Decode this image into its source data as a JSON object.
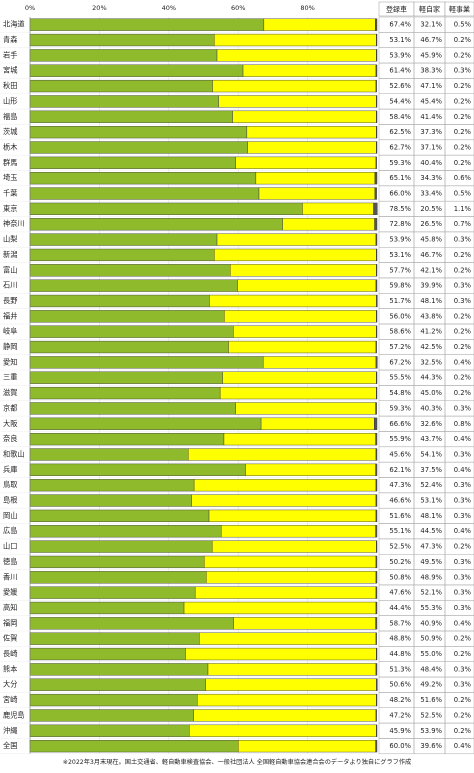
{
  "chart_data": {
    "type": "stacked-bar-100",
    "categories": [
      "北海道",
      "青森",
      "岩手",
      "宮城",
      "秋田",
      "山形",
      "福島",
      "茨城",
      "栃木",
      "群馬",
      "埼玉",
      "千葉",
      "東京",
      "神奈川",
      "山梨",
      "新潟",
      "富山",
      "石川",
      "長野",
      "福井",
      "岐阜",
      "静岡",
      "愛知",
      "三重",
      "滋賀",
      "京都",
      "大阪",
      "奈良",
      "和歌山",
      "兵庫",
      "鳥取",
      "島根",
      "岡山",
      "広島",
      "山口",
      "徳島",
      "香川",
      "愛媛",
      "高知",
      "福岡",
      "佐賀",
      "長崎",
      "熊本",
      "大分",
      "宮崎",
      "鹿児島",
      "沖縄",
      "全国"
    ],
    "series": [
      {
        "name": "登録車",
        "color": "#8fba2c",
        "values": [
          67.4,
          53.1,
          53.9,
          61.4,
          52.6,
          54.4,
          58.4,
          62.5,
          62.7,
          59.3,
          65.1,
          66.0,
          78.5,
          72.8,
          53.9,
          53.1,
          57.7,
          59.8,
          51.7,
          56.0,
          58.6,
          57.2,
          67.2,
          55.5,
          54.8,
          59.3,
          66.6,
          55.9,
          45.6,
          62.1,
          47.3,
          46.6,
          51.6,
          55.1,
          52.5,
          50.2,
          50.8,
          47.6,
          44.4,
          58.7,
          48.8,
          44.8,
          51.3,
          50.6,
          48.2,
          47.2,
          45.9,
          60.0
        ],
        "value_labels": [
          "67.4%",
          "53.1%",
          "53.9%",
          "61.4%",
          "52.6%",
          "54.4%",
          "58.4%",
          "62.5%",
          "62.7%",
          "59.3%",
          "65.1%",
          "66.0%",
          "78.5%",
          "72.8%",
          "53.9%",
          "53.1%",
          "57.7%",
          "59.8%",
          "51.7%",
          "56.0%",
          "58.6%",
          "57.2%",
          "67.2%",
          "55.5%",
          "54.8%",
          "59.3%",
          "66.6%",
          "55.9%",
          "45.6%",
          "62.1%",
          "47.3%",
          "46.6%",
          "51.6%",
          "55.1%",
          "52.5%",
          "50.2%",
          "50.8%",
          "47.6%",
          "44.4%",
          "58.7%",
          "48.8%",
          "44.8%",
          "51.3%",
          "50.6%",
          "48.2%",
          "47.2%",
          "45.9%",
          "60.0%"
        ]
      },
      {
        "name": "軽自家",
        "color": "#ffff00",
        "values": [
          32.1,
          46.7,
          45.9,
          38.3,
          47.1,
          45.4,
          41.4,
          37.3,
          37.1,
          40.4,
          34.3,
          33.4,
          20.5,
          26.5,
          45.8,
          46.7,
          42.1,
          39.9,
          48.1,
          43.8,
          41.2,
          42.5,
          32.5,
          44.3,
          45.0,
          40.3,
          32.6,
          43.7,
          54.1,
          37.5,
          52.4,
          53.1,
          48.1,
          44.5,
          47.3,
          49.5,
          48.9,
          52.1,
          55.3,
          40.9,
          50.9,
          55.0,
          48.4,
          49.2,
          51.6,
          52.5,
          53.9,
          39.6
        ],
        "value_labels": [
          "32.1%",
          "46.7%",
          "45.9%",
          "38.3%",
          "47.1%",
          "45.4%",
          "41.4%",
          "37.3%",
          "37.1%",
          "40.4%",
          "34.3%",
          "33.4%",
          "20.5%",
          "26.5%",
          "45.8%",
          "46.7%",
          "42.1%",
          "39.9%",
          "48.1%",
          "43.8%",
          "41.2%",
          "42.5%",
          "32.5%",
          "44.3%",
          "45.0%",
          "40.3%",
          "32.6%",
          "43.7%",
          "54.1%",
          "37.5%",
          "52.4%",
          "53.1%",
          "48.1%",
          "44.5%",
          "47.3%",
          "49.5%",
          "48.9%",
          "52.1%",
          "55.3%",
          "40.9%",
          "50.9%",
          "55.0%",
          "48.4%",
          "49.2%",
          "51.6%",
          "52.5%",
          "53.9%",
          "39.6%"
        ]
      },
      {
        "name": "軽事業",
        "color": "#555555",
        "values": [
          0.5,
          0.2,
          0.2,
          0.3,
          0.2,
          0.2,
          0.2,
          0.2,
          0.2,
          0.2,
          0.6,
          0.5,
          1.1,
          0.7,
          0.3,
          0.2,
          0.2,
          0.3,
          0.3,
          0.2,
          0.2,
          0.2,
          0.4,
          0.2,
          0.2,
          0.3,
          0.8,
          0.4,
          0.3,
          0.4,
          0.3,
          0.3,
          0.3,
          0.4,
          0.2,
          0.3,
          0.3,
          0.3,
          0.3,
          0.4,
          0.2,
          0.2,
          0.3,
          0.3,
          0.2,
          0.2,
          0.2,
          0.4
        ],
        "value_labels": [
          "0.5%",
          "0.2%",
          "0.2%",
          "0.3%",
          "0.2%",
          "0.2%",
          "0.2%",
          "0.2%",
          "0.2%",
          "0.2%",
          "0.6%",
          "0.5%",
          "1.1%",
          "0.7%",
          "0.3%",
          "0.2%",
          "0.2%",
          "0.3%",
          "0.3%",
          "0.2%",
          "0.2%",
          "0.2%",
          "0.4%",
          "0.2%",
          "0.2%",
          "0.3%",
          "0.8%",
          "0.4%",
          "0.3%",
          "0.4%",
          "0.3%",
          "0.3%",
          "0.3%",
          "0.4%",
          "0.2%",
          "0.3%",
          "0.3%",
          "0.3%",
          "0.3%",
          "0.4%",
          "0.2%",
          "0.2%",
          "0.3%",
          "0.3%",
          "0.2%",
          "0.2%",
          "0.2%",
          "0.4%"
        ]
      }
    ],
    "xlim": [
      0,
      100
    ],
    "xticks": [
      {
        "value": 0,
        "label": "0%"
      },
      {
        "value": 20,
        "label": "20%"
      },
      {
        "value": 40,
        "label": "40%"
      },
      {
        "value": 60,
        "label": "60%"
      },
      {
        "value": 80,
        "label": "80%"
      }
    ],
    "grid": true,
    "note": "※2022年3月末現在。国土交通省、軽自動車検査協会、一般社団法人 全国軽自動車協会連合会のデータより独自にグラフ作成"
  }
}
